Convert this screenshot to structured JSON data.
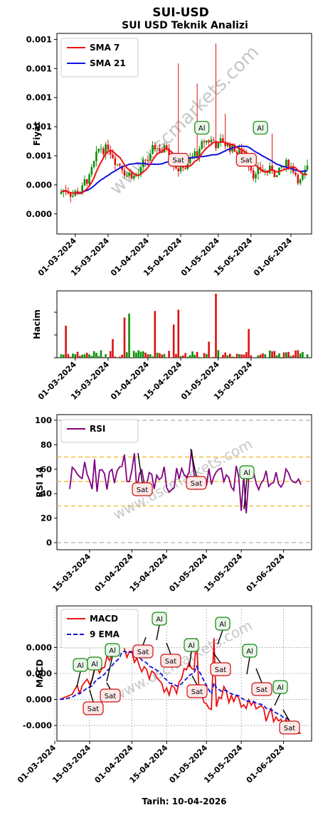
{
  "header": {
    "title": "SUI-USD",
    "subtitle": "SUI USD Teknik Analizi",
    "footer": "Tarih: 10-04-2026"
  },
  "watermark": "www.uscmarkets.com",
  "colors": {
    "sma7": "#ee1111",
    "sma21": "#1111dd",
    "up": "#0a8f0a",
    "down": "#dd1111",
    "rsi": "#800080",
    "macd": "#ee1111",
    "ema": "#1111dd",
    "buy_border": "#118811",
    "sell_border": "#cc1111",
    "grid": "#bbbbbb",
    "level_line": "#f0c040"
  },
  "date_ticks": [
    "01-03-2024",
    "15-03-2024",
    "01-04-2024",
    "15-04-2024",
    "01-05-2024",
    "15-05-2024",
    "01-06-2024"
  ],
  "date_ticks_short": [
    "15-03-2024",
    "01-04-2024",
    "15-04-2024",
    "01-05-2024",
    "15-05-2024",
    "01-06-2024"
  ],
  "signal_labels": {
    "buy": "Al",
    "sell": "Sat"
  },
  "chart_data": [
    {
      "type": "line",
      "title": "SUI USD Teknik Analizi",
      "ylabel": "Fiyat",
      "ytick_labels": [
        "0.000",
        "0.000",
        "0.001",
        "0.001",
        "0.001",
        "0.001",
        "0.001"
      ],
      "legend": "top-left",
      "series": [
        {
          "name": "SMA 7",
          "color": "#ee1111"
        },
        {
          "name": "SMA 21",
          "color": "#1111dd"
        }
      ],
      "signals": [
        {
          "label": "Sat",
          "date": "2024-04-14"
        },
        {
          "label": "Al",
          "date": "2024-04-24"
        },
        {
          "label": "Sat",
          "date": "2024-05-13"
        },
        {
          "label": "Al",
          "date": "2024-05-19"
        }
      ]
    },
    {
      "type": "bar",
      "ylabel": "Hacim",
      "series": [
        {
          "name": "Hacim"
        }
      ]
    },
    {
      "type": "line",
      "ylabel": "RSI 14",
      "ylim": [
        0,
        100
      ],
      "ytick_labels": [
        "0",
        "20",
        "40",
        "60",
        "80",
        "100"
      ],
      "levels": [
        30,
        50,
        70
      ],
      "legend": "top-left",
      "series": [
        {
          "name": "RSI",
          "color": "#800080"
        }
      ],
      "signals": [
        {
          "label": "Sat",
          "date": "2024-03-29"
        },
        {
          "label": "Sat",
          "date": "2024-04-25"
        },
        {
          "label": "Al",
          "date": "2024-05-15"
        }
      ]
    },
    {
      "type": "line",
      "ylabel": "MACD",
      "ytick_labels": [
        "-0.000",
        "0.000",
        "0.000",
        "0.000"
      ],
      "legend": "top-left",
      "series": [
        {
          "name": "MACD",
          "color": "#ee1111"
        },
        {
          "name": "9 EMA",
          "color": "#1111dd"
        }
      ],
      "signals": [
        {
          "label": "Al",
          "date": "2024-03-08"
        },
        {
          "label": "Sat",
          "date": "2024-03-10"
        },
        {
          "label": "Al",
          "date": "2024-03-12"
        },
        {
          "label": "Sat",
          "date": "2024-03-16"
        },
        {
          "label": "Al",
          "date": "2024-03-19"
        },
        {
          "label": "Sat",
          "date": "2024-03-27"
        },
        {
          "label": "Al",
          "date": "2024-04-03"
        },
        {
          "label": "Sat",
          "date": "2024-04-09"
        },
        {
          "label": "Al",
          "date": "2024-04-17"
        },
        {
          "label": "Sat",
          "date": "2024-04-20"
        },
        {
          "label": "Sat",
          "date": "2024-04-29"
        },
        {
          "label": "Al",
          "date": "2024-05-02"
        },
        {
          "label": "Al",
          "date": "2024-05-16"
        },
        {
          "label": "Sat",
          "date": "2024-05-20"
        },
        {
          "label": "Al",
          "date": "2024-05-28"
        },
        {
          "label": "Sat",
          "date": "2024-06-05"
        }
      ]
    }
  ]
}
